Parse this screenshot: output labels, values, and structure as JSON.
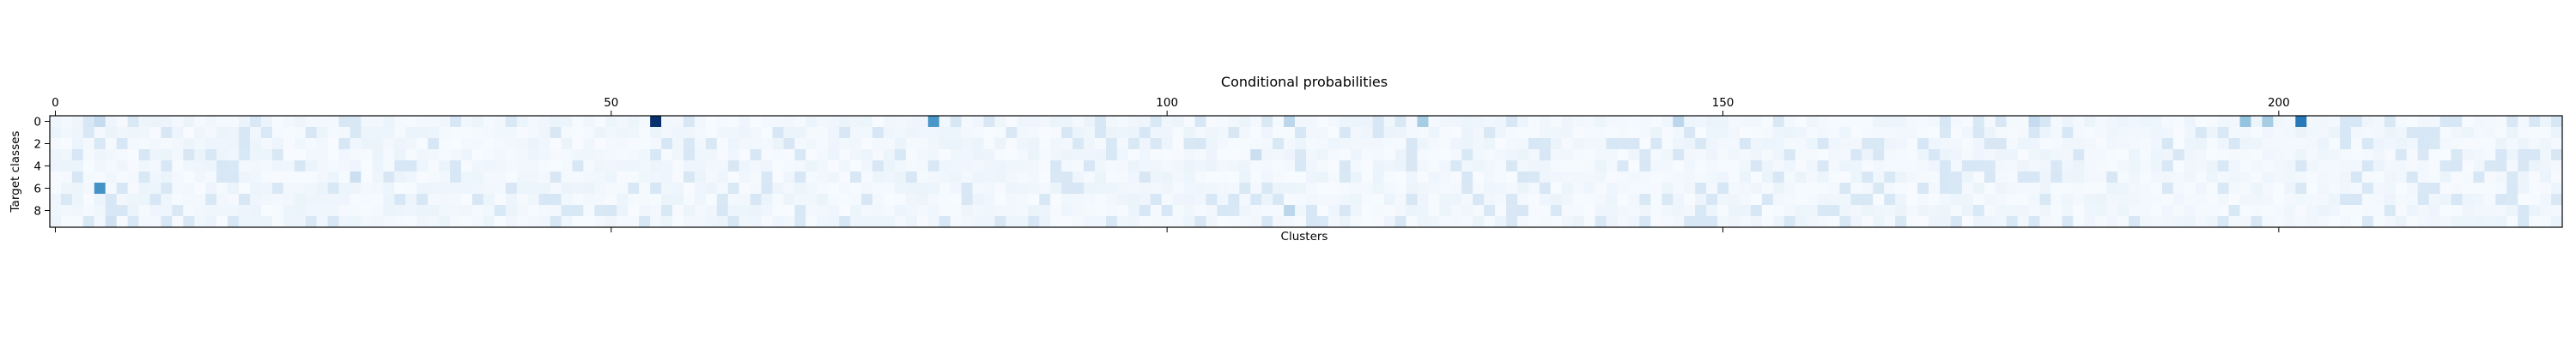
{
  "chart_data": {
    "type": "heatmap",
    "title": "Conditional probabilities",
    "xlabel": "Clusters",
    "ylabel": "Target classes",
    "n_rows": 10,
    "n_cols": 226,
    "x_ticks": [
      0,
      50,
      100,
      150,
      200
    ],
    "x_tick_labels": [
      "0",
      "50",
      "100",
      "150",
      "200"
    ],
    "x_ticks_position": "top",
    "y_ticks": [
      0,
      2,
      4,
      6,
      8
    ],
    "y_tick_labels": [
      "0",
      "2",
      "4",
      "6",
      "8"
    ],
    "colormap": "Blues",
    "value_range": [
      0,
      1
    ],
    "colors": {
      "low": "#f7fbff",
      "mid": "#6baed6",
      "high": "#08306b"
    },
    "base_value": 0.05,
    "highlights": [
      {
        "row": 0,
        "col": 54,
        "value": 1.0
      },
      {
        "row": 0,
        "col": 79,
        "value": 0.6
      },
      {
        "row": 0,
        "col": 202,
        "value": 0.72
      },
      {
        "row": 0,
        "col": 197,
        "value": 0.4
      },
      {
        "row": 0,
        "col": 199,
        "value": 0.35
      },
      {
        "row": 0,
        "col": 123,
        "value": 0.35
      },
      {
        "row": 0,
        "col": 111,
        "value": 0.28
      },
      {
        "row": 0,
        "col": 146,
        "value": 0.28
      },
      {
        "row": 0,
        "col": 178,
        "value": 0.25
      },
      {
        "row": 0,
        "col": 4,
        "value": 0.25
      },
      {
        "row": 6,
        "col": 4,
        "value": 0.62
      },
      {
        "row": 8,
        "col": 111,
        "value": 0.28
      },
      {
        "row": 9,
        "col": 5,
        "value": 0.2
      },
      {
        "row": 5,
        "col": 27,
        "value": 0.22
      },
      {
        "row": 3,
        "col": 108,
        "value": 0.22
      }
    ]
  }
}
